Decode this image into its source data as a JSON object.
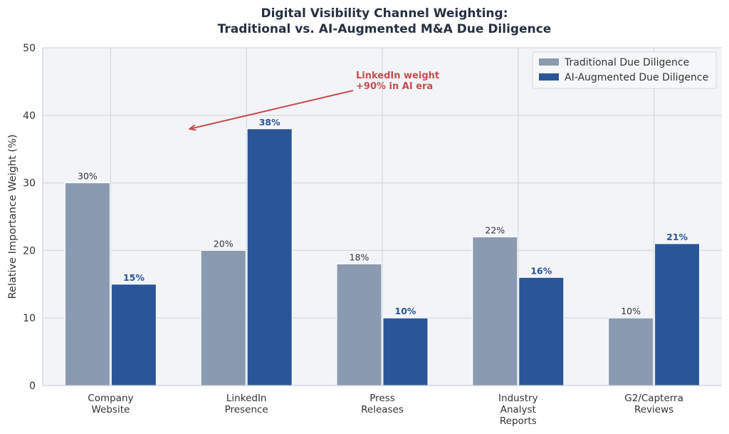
{
  "chart_data": {
    "type": "bar",
    "title": "Digital Visibility Channel Weighting:",
    "subtitle": "Traditional vs. AI-Augmented M&A Due Diligence",
    "title_lines": [
      "Digital Visibility Channel Weighting:",
      "Traditional vs. AI-Augmented M&A Due Diligence"
    ],
    "xlabel": "",
    "ylabel": "Relative Importance Weight (%)",
    "ylim": [
      0,
      50
    ],
    "yticks": [
      0,
      10,
      20,
      30,
      40,
      50
    ],
    "grid": true,
    "legend_position": "top-right",
    "categories": [
      [
        "Company",
        "Website"
      ],
      [
        "LinkedIn",
        "Presence"
      ],
      [
        "Press",
        "Releases"
      ],
      [
        "Industry",
        "Analyst",
        "Reports"
      ],
      [
        "G2/Capterra",
        "Reviews"
      ]
    ],
    "series": [
      {
        "name": "Traditional Due Diligence",
        "color": "#8a9ab0",
        "label_color": "#333333",
        "values": [
          30,
          20,
          18,
          22,
          10
        ],
        "labels": [
          "30%",
          "20%",
          "18%",
          "22%",
          "10%"
        ]
      },
      {
        "name": "AI-Augmented Due Diligence",
        "color": "#2a5699",
        "label_color": "#2a5699",
        "values": [
          15,
          38,
          10,
          16,
          21
        ],
        "labels": [
          "15%",
          "38%",
          "10%",
          "16%",
          "21%"
        ]
      }
    ],
    "annotation": {
      "lines": [
        "LinkedIn weight",
        "+90% in AI era"
      ],
      "color": "#c44e4e",
      "points_to_category": 1,
      "points_to_value": 38
    }
  },
  "colors": {
    "plot_background": "#f3f4f8",
    "grid": "#d6d8dd",
    "title": "#263040"
  }
}
